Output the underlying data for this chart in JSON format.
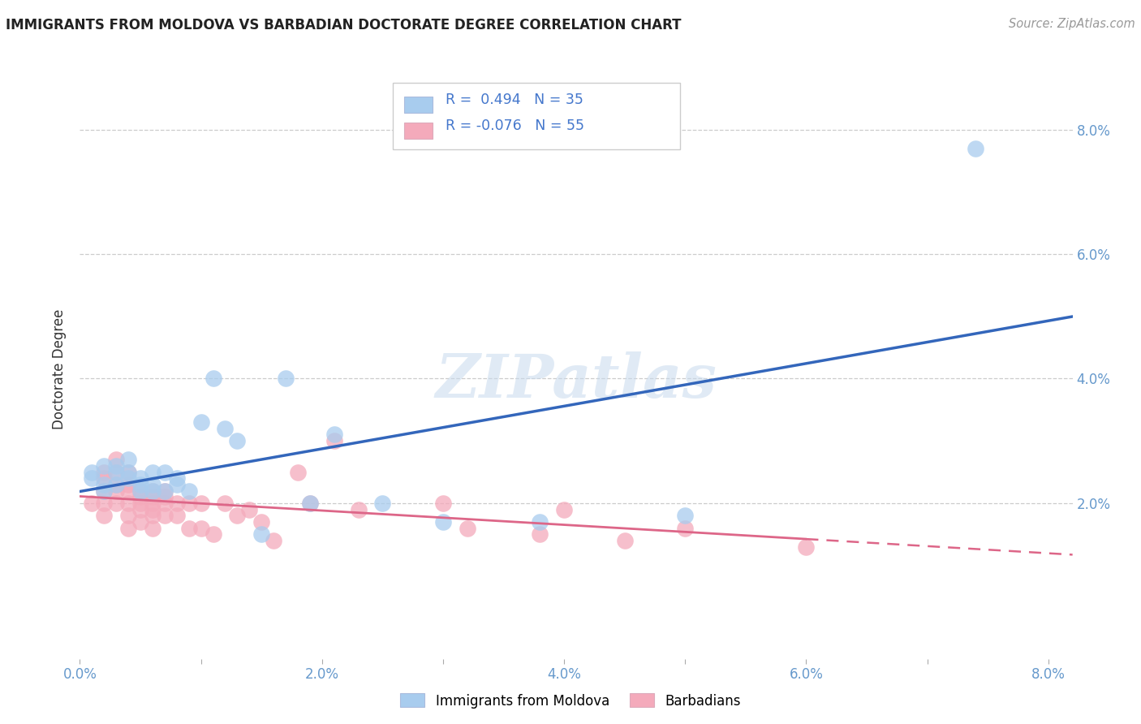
{
  "title": "IMMIGRANTS FROM MOLDOVA VS BARBADIAN DOCTORATE DEGREE CORRELATION CHART",
  "source": "Source: ZipAtlas.com",
  "ylabel_label": "Doctorate Degree",
  "watermark": "ZIPatlas",
  "xlim": [
    0.0,
    0.082
  ],
  "ylim": [
    -0.005,
    0.088
  ],
  "xtick_labels": [
    "0.0%",
    "",
    "2.0%",
    "",
    "4.0%",
    "",
    "6.0%",
    "",
    "8.0%"
  ],
  "xtick_vals": [
    0.0,
    0.01,
    0.02,
    0.03,
    0.04,
    0.05,
    0.06,
    0.07,
    0.08
  ],
  "ytick_labels": [
    "2.0%",
    "4.0%",
    "6.0%",
    "8.0%"
  ],
  "ytick_vals": [
    0.02,
    0.04,
    0.06,
    0.08
  ],
  "series1_label": "Immigrants from Moldova",
  "series1_color": "#A8CCEE",
  "series1_line_color": "#3366BB",
  "series1_R": "0.494",
  "series1_N": "35",
  "series2_label": "Barbadians",
  "series2_color": "#F4AABB",
  "series2_line_color": "#DD6688",
  "series2_R": "-0.076",
  "series2_N": "55",
  "moldova_x": [
    0.001,
    0.001,
    0.002,
    0.002,
    0.002,
    0.003,
    0.003,
    0.003,
    0.004,
    0.004,
    0.004,
    0.005,
    0.005,
    0.005,
    0.006,
    0.006,
    0.006,
    0.007,
    0.007,
    0.008,
    0.008,
    0.009,
    0.01,
    0.011,
    0.012,
    0.013,
    0.015,
    0.017,
    0.019,
    0.021,
    0.025,
    0.03,
    0.038,
    0.05,
    0.074
  ],
  "moldova_y": [
    0.025,
    0.024,
    0.026,
    0.023,
    0.022,
    0.026,
    0.025,
    0.023,
    0.027,
    0.025,
    0.024,
    0.024,
    0.023,
    0.022,
    0.025,
    0.023,
    0.022,
    0.025,
    0.022,
    0.024,
    0.023,
    0.022,
    0.033,
    0.04,
    0.032,
    0.03,
    0.015,
    0.04,
    0.02,
    0.031,
    0.02,
    0.017,
    0.017,
    0.018,
    0.077
  ],
  "barbadian_x": [
    0.001,
    0.002,
    0.002,
    0.002,
    0.002,
    0.002,
    0.003,
    0.003,
    0.003,
    0.003,
    0.003,
    0.004,
    0.004,
    0.004,
    0.004,
    0.004,
    0.004,
    0.005,
    0.005,
    0.005,
    0.005,
    0.005,
    0.006,
    0.006,
    0.006,
    0.006,
    0.006,
    0.006,
    0.007,
    0.007,
    0.007,
    0.007,
    0.008,
    0.008,
    0.009,
    0.009,
    0.01,
    0.01,
    0.011,
    0.012,
    0.013,
    0.014,
    0.015,
    0.016,
    0.018,
    0.019,
    0.021,
    0.023,
    0.03,
    0.032,
    0.038,
    0.04,
    0.045,
    0.05,
    0.06
  ],
  "barbadian_y": [
    0.02,
    0.025,
    0.024,
    0.022,
    0.02,
    0.018,
    0.027,
    0.025,
    0.023,
    0.022,
    0.02,
    0.025,
    0.023,
    0.022,
    0.02,
    0.018,
    0.016,
    0.022,
    0.021,
    0.02,
    0.019,
    0.017,
    0.022,
    0.021,
    0.02,
    0.019,
    0.018,
    0.016,
    0.022,
    0.021,
    0.02,
    0.018,
    0.02,
    0.018,
    0.02,
    0.016,
    0.02,
    0.016,
    0.015,
    0.02,
    0.018,
    0.019,
    0.017,
    0.014,
    0.025,
    0.02,
    0.03,
    0.019,
    0.02,
    0.016,
    0.015,
    0.019,
    0.014,
    0.016,
    0.013
  ],
  "legend_text_color": "#4477CC",
  "title_color": "#222222",
  "tick_color": "#6699CC",
  "grid_color": "#CCCCCC",
  "background_color": "#FFFFFF"
}
